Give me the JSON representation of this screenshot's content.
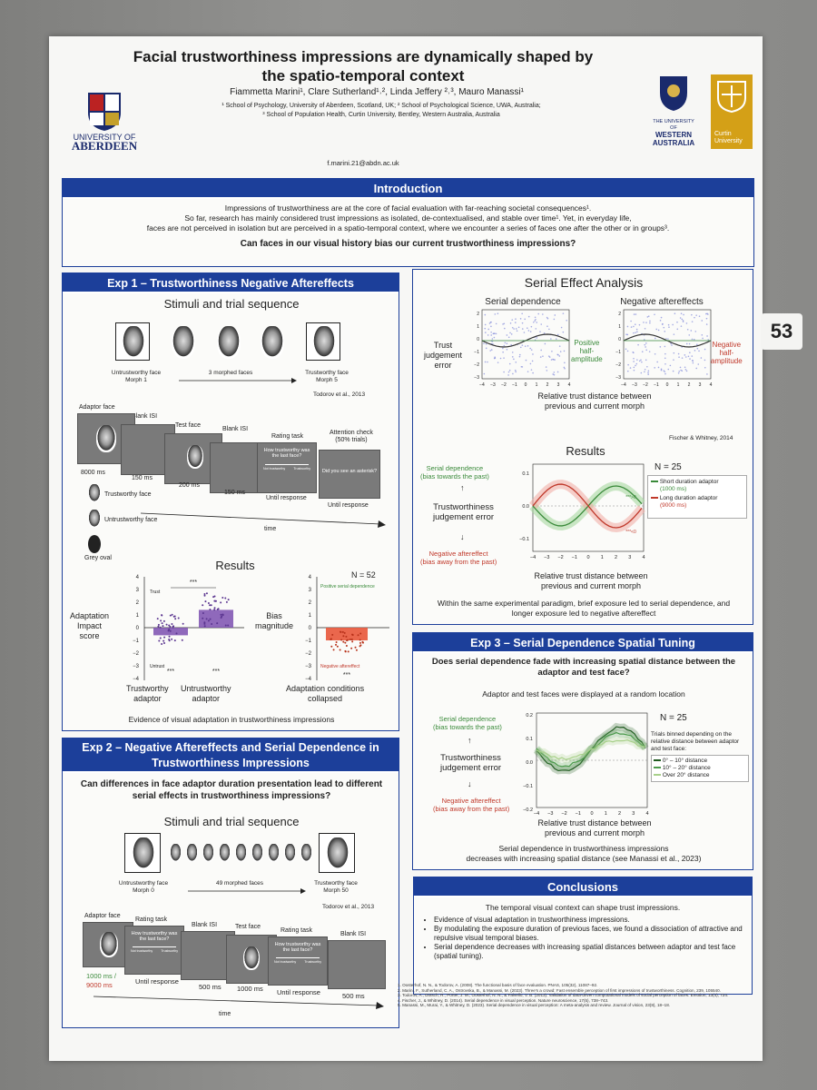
{
  "tag_number": "53",
  "title": "Facial trustworthiness impressions are dynamically shaped by the spatio-temporal context",
  "authors": "Fiammetta Marini¹, Clare Sutherland¹˒², Linda Jeffery ²˒³, Mauro Manassi¹",
  "affiliations": [
    "¹ School of Psychology, University of Aberdeen, Scotland, UK; ² School of Psychological Science, UWA, Australia;",
    "³ School of Population Health, Curtin University, Bentley, Western Australia, Australia"
  ],
  "email": "f.marini.21@abdn.ac.uk",
  "logos": {
    "aberdeen_line1": "UNIVERSITY OF",
    "aberdeen_line2": "ABERDEEN",
    "uwa_line1": "THE UNIVERSITY OF",
    "uwa_line2": "WESTERN",
    "uwa_line3": "AUSTRALIA",
    "curtin_line1": "Curtin",
    "curtin_line2": "University"
  },
  "colors": {
    "header_blue": "#1c3f9a",
    "green": "#3a8a3a",
    "red": "#c0392b",
    "purple": "#7b4fb0",
    "orange": "#e8573a"
  },
  "introduction": {
    "header": "Introduction",
    "lines": [
      "Impressions of trustworthiness are at the core of facial evaluation with far-reaching societal consequences¹.",
      "So far, research has mainly considered trust impressions as isolated, de-contextualised, and stable over time¹. Yet, in everyday life,",
      "faces are not perceived in isolation but are perceived in a spatio-temporal context, where we encounter a series of faces one after the other or in groups³."
    ],
    "question": "Can faces in our visual history bias our current trustworthiness impressions?"
  },
  "exp1": {
    "header": "Exp 1 – Trustworthiness Negative Aftereffects",
    "stimuli_title": "Stimuli and trial sequence",
    "untrustworthy": "Untrustworthy face\nMorph 1",
    "morphed": "3 morphed faces",
    "trustworthy": "Trustworthy face\nMorph 5",
    "citation": "Todorov et al., 2013",
    "seq": {
      "adaptor": "Adaptor face",
      "blank1": "Blank ISI",
      "test": "Test face",
      "blank2": "Blank ISI",
      "rating": "Rating task",
      "attention": "Attention check\n(50% trials)",
      "t1": "8000 ms",
      "t2": "150 ms",
      "t3": "200 ms",
      "t4": "150 ms",
      "t5": "Until response",
      "t6": "Until response",
      "rating_q": "How trustworthy was the last face?",
      "asterisk_q": "Did you see an asterisk?",
      "legend": [
        "Trustworthy face",
        "Untrustworthy face",
        "Grey oval"
      ],
      "time": "time",
      "scale_low": "Not trustworthy",
      "scale_high": "Trustworthy",
      "scale_1": "1",
      "scale_10": "10"
    },
    "results_title": "Results",
    "n": "N = 52",
    "ylabel_left": "Adaptation\nImpact\nscore",
    "ylabel_right": "Bias\nmagnitude",
    "trust_label": "Trust",
    "untrust_label": "Untrust",
    "pos_serial": "Positive serial dependence",
    "neg_after": "Negative aftereffect",
    "sig": "***",
    "yticks": [
      "4",
      "3",
      "2",
      "1",
      "0",
      "−1",
      "−2",
      "−3",
      "−4"
    ],
    "x1": "Trustworthy\nadaptor",
    "x2": "Untrustworthy\nadaptor",
    "x3": "Adaptation conditions\ncollapsed",
    "caption": "Evidence of visual adaptation in trustworthiness impressions"
  },
  "exp2": {
    "header": "Exp 2 – Negative Aftereffects and Serial Dependence in Trustworthiness Impressions",
    "question": "Can differences in face adaptor duration presentation lead to different serial effects in trustworthiness impressions?",
    "stimuli_title": "Stimuli and trial sequence",
    "untrustworthy": "Untrustworthy face\nMorph 0",
    "morphed": "49 morphed faces",
    "trustworthy": "Trustworthy face\nMorph 50",
    "citation": "Todorov et al., 2013",
    "seq": {
      "adaptor": "Adaptor face",
      "rating1": "Rating task",
      "blank1": "Blank ISI",
      "test": "Test face",
      "rating2": "Rating task",
      "blank2": "Blank ISI",
      "t1a": "1000 ms /",
      "t1b": "9000 ms",
      "t2": "Until response",
      "t3": "500 ms",
      "t4": "1000 ms",
      "t5": "Until response",
      "t6": "500 ms",
      "rating_q": "How trustworthy was the last face?",
      "scale_low": "Not trustworthy",
      "scale_high": "Trustworthy",
      "time": "time"
    }
  },
  "serial": {
    "header": "Serial Effect Analysis",
    "sd_title": "Serial dependence",
    "na_title": "Negative aftereffects",
    "ylabel": "Trust\njudgement\nerror",
    "pos_half": "Positive\nhalf-\namplitude",
    "neg_half": "Negative\nhalf-\namplitude",
    "xlabel": "Relative trust distance between\nprevious and current morph",
    "citation": "Fischer & Whitney, 2014",
    "results_title": "Results",
    "n": "N = 25",
    "sd_label": "Serial dependence\n(bias towards the past)",
    "tje": "Trustworthiness\njudgement error",
    "na_label": "Negative aftereffect\n(bias away from the past)",
    "legend_short": "Short duration adaptor",
    "legend_short_ms": "(1000 ms)",
    "legend_long": "Long duration adaptor",
    "legend_long_ms": "(9000 ms)",
    "sig1": "***>0",
    "sig2": "***<0",
    "caption": "Within the same experimental paradigm, brief exposure led to serial dependence, and longer exposure led to negative aftereffect",
    "yticks": [
      "2",
      "1",
      "0",
      "−1",
      "−2",
      "−3"
    ],
    "xticks": [
      "−4",
      "−3",
      "−2",
      "−1",
      "0",
      "1",
      "2",
      "3",
      "4"
    ],
    "ryticks": [
      "0.1",
      "0.0",
      "−0.1"
    ]
  },
  "exp3": {
    "header": "Exp 3 – Serial Dependence Spatial Tuning",
    "question": "Does serial dependence fade with increasing spatial distance between the adaptor and test face?",
    "note": "Adaptor and test faces were displayed at a random location",
    "n": "N = 25",
    "sd_label": "Serial dependence\n(bias towards the past)",
    "tje": "Trustworthiness\njudgement error",
    "na_label": "Negative aftereffect\n(bias away from the past)",
    "legend_title": "Trials binned depending on the relative distance between adaptor and test face:",
    "legend": [
      "0° – 10° distance",
      "10° – 20° distance",
      "Over 20° distance"
    ],
    "xlabel": "Relative trust distance between\nprevious and current morph",
    "caption": "Serial dependence in trustworthiness impressions\ndecreases with increasing spatial distance (see Manassi et al., 2023)",
    "yticks": [
      "0.2",
      "0.1",
      "0.0",
      "−0.1",
      "−0.2"
    ],
    "xticks": [
      "−4",
      "−3",
      "−2",
      "−1",
      "0",
      "1",
      "2",
      "3",
      "4"
    ]
  },
  "conclusions": {
    "header": "Conclusions",
    "lead": "The temporal visual context can shape trust impressions.",
    "bullets": [
      "Evidence of visual adaptation in trustworthiness impressions.",
      "By modulating the exposure duration of previous faces, we found a dissociation of attractive and repulsive visual temporal biases.",
      "Serial dependence decreases with increasing spatial distances between adaptor and test face (spatial tuning)."
    ]
  },
  "references": [
    "1.   Oosterhof, N. N., & Todorov, A. (2008). The functional basis of face evaluation. PNAS, 105(32), 11087–92.",
    "2.   Marini, F., Sutherland, C. A., Ostrovska, B., & Manassi, M. (2023). Three's a crowd: Fast ensemble perception of first impressions of trustworthiness. Cognition, 239, 105540.",
    "3.   Todorov, A., Dotsch, R., Porter, J. M., Oosterhof, N. N., & Falvello, V. B. (2013). Validation of data-driven computational models of social perception of faces. Emotion, 13(4), 724.",
    "4.   Fischer, J., & Whitney, D. (2014). Serial dependence in visual perception. Nature neuroscience, 17(5), 738–743.",
    "5.   Manassi, M., Murai, Y., & Whitney, D. (2023). Serial dependence in visual perception: A meta-analysis and review. Journal of vision, 23(8), 18–18."
  ]
}
